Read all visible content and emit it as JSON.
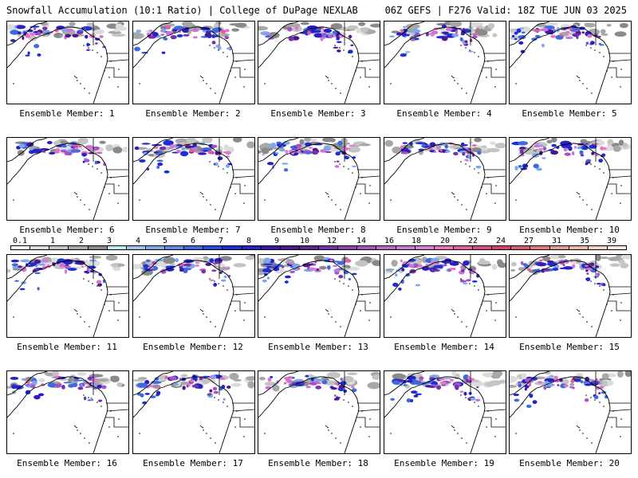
{
  "header": {
    "left": "Snowfall Accumulation (10:1 Ratio) | College of DuPage NEXLAB",
    "right": "06Z GEFS | F276 Valid: 18Z TUE JUN 03 2025"
  },
  "members": [
    {
      "label": "Ensemble Member: 1"
    },
    {
      "label": "Ensemble Member: 2"
    },
    {
      "label": "Ensemble Member: 3"
    },
    {
      "label": "Ensemble Member: 4"
    },
    {
      "label": "Ensemble Member: 5"
    },
    {
      "label": "Ensemble Member: 6"
    },
    {
      "label": "Ensemble Member: 7"
    },
    {
      "label": "Ensemble Member: 8"
    },
    {
      "label": "Ensemble Member: 9"
    },
    {
      "label": "Ensemble Member: 10"
    },
    {
      "label": "Ensemble Member: 11"
    },
    {
      "label": "Ensemble Member: 12"
    },
    {
      "label": "Ensemble Member: 13"
    },
    {
      "label": "Ensemble Member: 14"
    },
    {
      "label": "Ensemble Member: 15"
    },
    {
      "label": "Ensemble Member: 16"
    },
    {
      "label": "Ensemble Member: 17"
    },
    {
      "label": "Ensemble Member: 18"
    },
    {
      "label": "Ensemble Member: 19"
    },
    {
      "label": "Ensemble Member: 20"
    }
  ],
  "colorbar": {
    "labels": [
      "0.1",
      "1",
      "2",
      "3",
      "4",
      "5",
      "6",
      "7",
      "8",
      "9",
      "10",
      "12",
      "14",
      "16",
      "18",
      "20",
      "22",
      "24",
      "27",
      "31",
      "35",
      "39"
    ],
    "colors": [
      "#ffffff",
      "#dcdcdc",
      "#c4c4c4",
      "#a8a8a8",
      "#8a8a8a",
      "#b6ecf2",
      "#9fc4ee",
      "#7fa8ea",
      "#5f8ce6",
      "#3d6ae2",
      "#244ede",
      "#1a2fd6",
      "#2a1fc4",
      "#3a16a6",
      "#4d1690",
      "#62209e",
      "#7a30ae",
      "#9040bc",
      "#a652c6",
      "#bc64d0",
      "#d074d8",
      "#e07ad4",
      "#ec70c0",
      "#e85aa4",
      "#de4888",
      "#d64070",
      "#d85a6a",
      "#e07a78",
      "#e89a8e",
      "#f0b8a8",
      "#f6d2c0",
      "#faead8"
    ]
  }
}
